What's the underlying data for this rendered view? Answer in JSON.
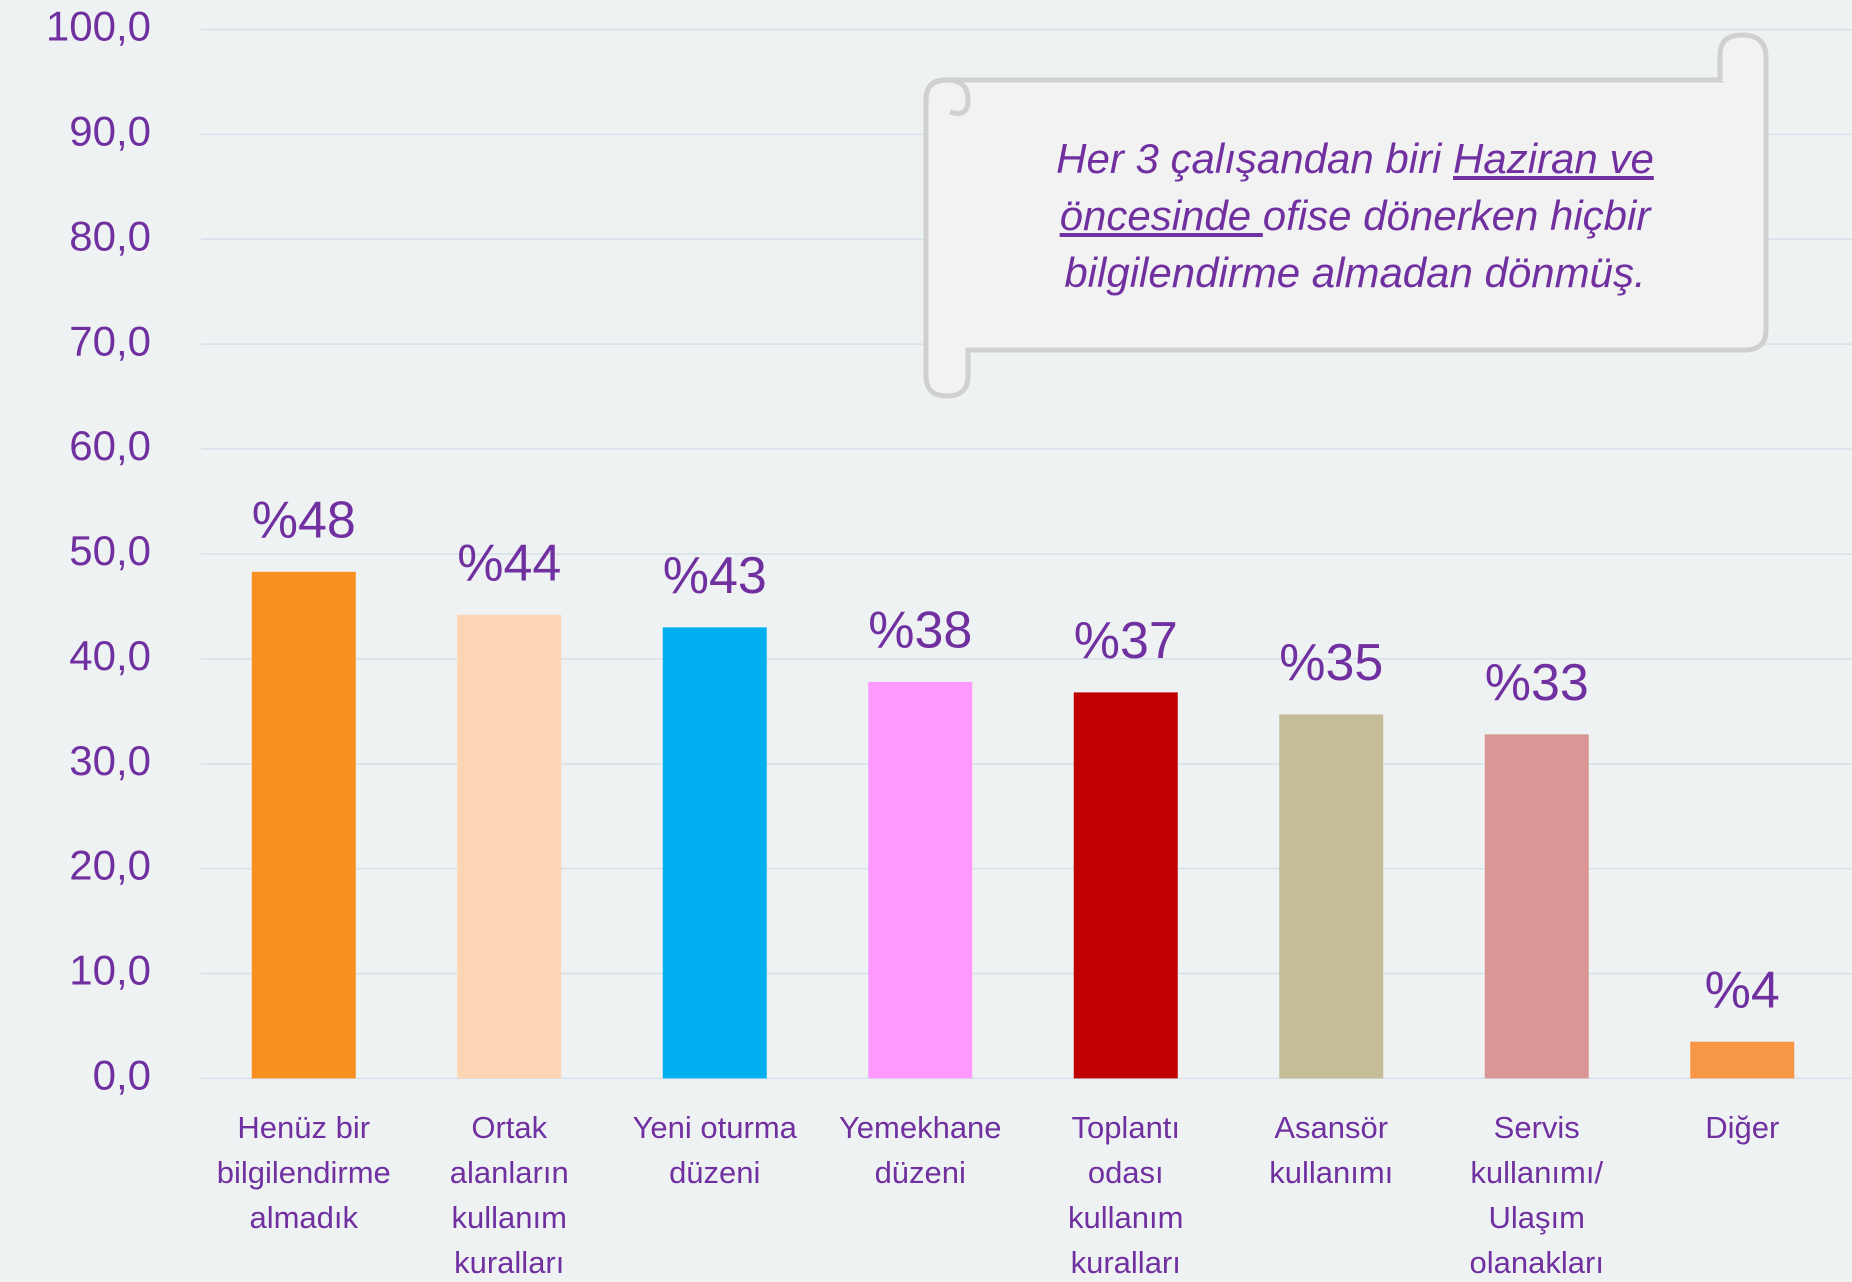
{
  "chart_data": {
    "type": "bar",
    "categories": [
      "Henüz bir\nbilgilendirme\nalmadık",
      "Ortak\nalanların\nkullanım\nkuralları",
      "Yeni oturma\ndüzeni",
      "Yemekhane\ndüzeni",
      "Toplantı\nodası\nkullanım\nkuralları",
      "Asansör\nkullanımı",
      "Servis\nkullanımı/\nUlaşım\nolanakları",
      "Diğer"
    ],
    "values": [
      48.3,
      44.2,
      43.0,
      37.8,
      36.8,
      34.7,
      32.8,
      3.5
    ],
    "value_labels": [
      "%48",
      "%44",
      "%43",
      "%38",
      "%37",
      "%35",
      "%33",
      "%4"
    ],
    "colors": [
      "#f7901e",
      "#fdd5b4",
      "#00b0f0",
      "#ff99ff",
      "#c00000",
      "#c4bd97",
      "#d99694",
      "#f79646"
    ],
    "ylim": [
      0,
      100
    ],
    "yticks": [
      {
        "value": 0,
        "label": "0,0"
      },
      {
        "value": 10,
        "label": "10,0"
      },
      {
        "value": 20,
        "label": "20,0"
      },
      {
        "value": 30,
        "label": "30,0"
      },
      {
        "value": 40,
        "label": "40,0"
      },
      {
        "value": 50,
        "label": "50,0"
      },
      {
        "value": 60,
        "label": "60,0"
      },
      {
        "value": 70,
        "label": "70,0"
      },
      {
        "value": 80,
        "label": "80,0"
      },
      {
        "value": 90,
        "label": "90,0"
      },
      {
        "value": 100,
        "label": "100,0"
      }
    ],
    "grid": true,
    "annotation": [
      "Her 3 çalışandan biri ",
      "Haziran ve öncesinde ",
      "ofise dönerken hiçbir bilgilendirme almadan dönmüş."
    ]
  }
}
